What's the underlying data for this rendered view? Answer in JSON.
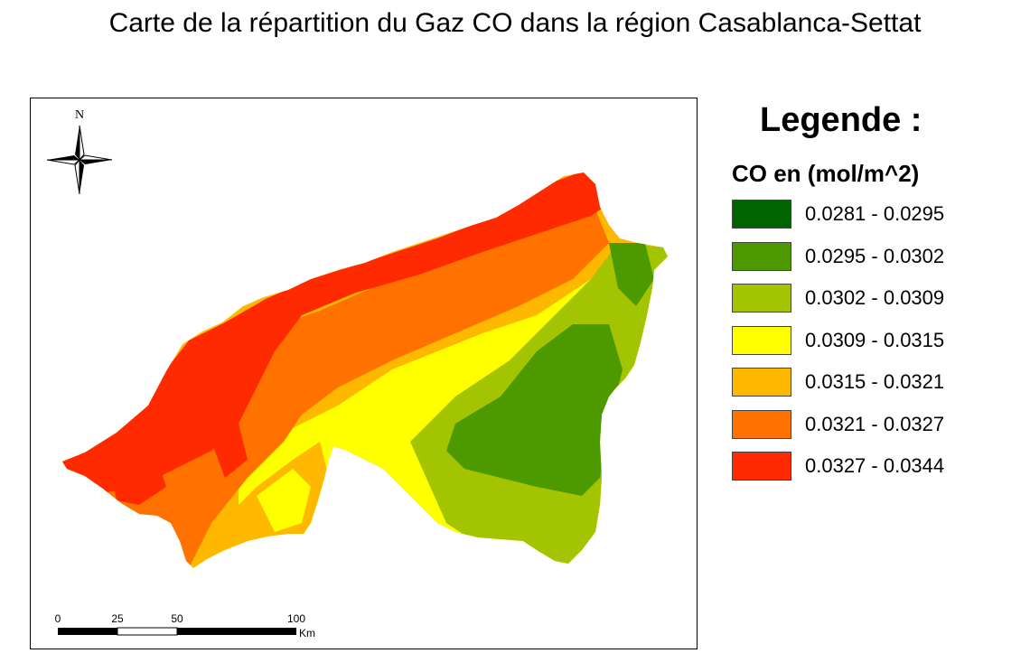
{
  "title": "Carte de la répartition du Gaz CO dans la région Casablanca-Settat",
  "north_label": "N",
  "legend": {
    "heading": "Legende :",
    "subtitle": "CO en (mol/m^2)",
    "classes": [
      {
        "label": "0.0281 - 0.0295",
        "color": "#006400"
      },
      {
        "label": "0.0295 - 0.0302",
        "color": "#4c9900"
      },
      {
        "label": "0.0302 - 0.0309",
        "color": "#a3c400"
      },
      {
        "label": "0.0309 - 0.0315",
        "color": "#ffff00"
      },
      {
        "label": "0.0315 - 0.0321",
        "color": "#ffb800"
      },
      {
        "label": "0.0321 - 0.0327",
        "color": "#ff7200"
      },
      {
        "label": "0.0327 - 0.0344",
        "color": "#ff2a00"
      }
    ]
  },
  "scale": {
    "ticks": [
      "0",
      "25",
      "50",
      "100"
    ],
    "unit": "Km"
  }
}
